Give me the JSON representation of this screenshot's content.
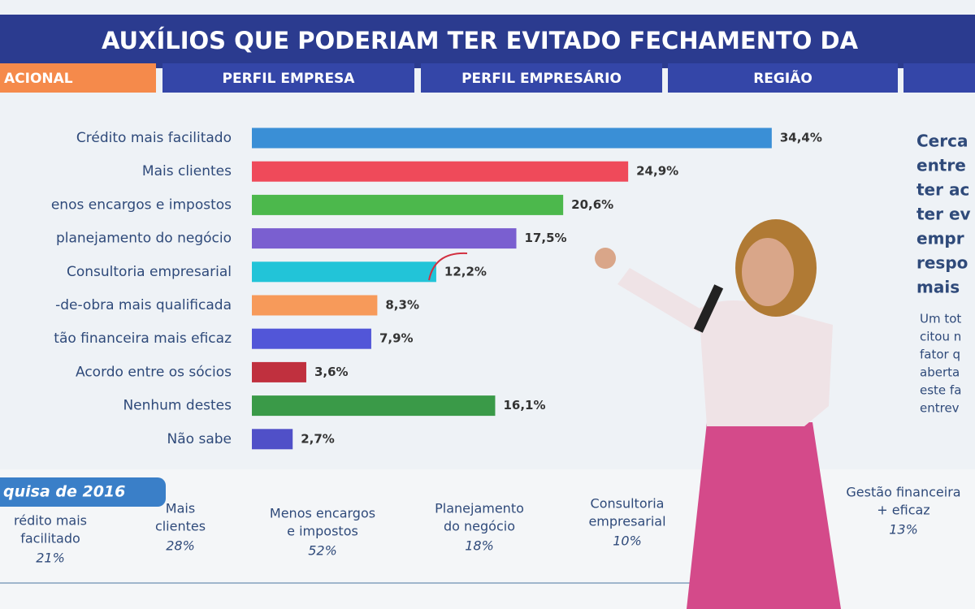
{
  "header": {
    "title": "AUXÍLIOS QUE PODERIAM TER EVITADO FECHAMENTO DA"
  },
  "tabs": [
    "ACIONAL",
    "PERFIL EMPRESA",
    "PERFIL EMPRESÁRIO",
    "REGIÃO"
  ],
  "chart_data": {
    "type": "bar",
    "orientation": "horizontal",
    "categories": [
      "Crédito mais facilitado",
      "Mais clientes",
      "enos encargos e impostos",
      "planejamento do negócio",
      "Consultoria empresarial",
      "-de-obra mais qualificada",
      "tão financeira mais eficaz",
      "Acordo entre os sócios",
      "Nenhum destes",
      "Não sabe"
    ],
    "values": [
      34.4,
      24.9,
      20.6,
      17.5,
      12.2,
      8.3,
      7.9,
      3.6,
      16.1,
      2.7
    ],
    "value_labels": [
      "34,4%",
      "24,9%",
      "20,6%",
      "17,5%",
      "12,2%",
      "8,3%",
      "7,9%",
      "3,6%",
      "16,1%",
      "2,7%"
    ],
    "colors": [
      "#3a8fd6",
      "#ef4a5a",
      "#4cb84c",
      "#7a5fd0",
      "#22c4d8",
      "#f79a5a",
      "#5256d8",
      "#c0303e",
      "#3a9a48",
      "#5050c8"
    ]
  },
  "side_text": {
    "lead": [
      "Cerca",
      "entre",
      "ter ac",
      "ter ev",
      "empr",
      "respo",
      "mais"
    ],
    "note": [
      "Um tot",
      "citou n",
      "fator q",
      "aberta",
      "este fa",
      "entrev"
    ]
  },
  "comparison": {
    "label": "quisa de 2016",
    "items": [
      {
        "lines": [
          "rédito mais",
          "facilitado"
        ],
        "value": "21%"
      },
      {
        "lines": [
          "Mais",
          "clientes"
        ],
        "value": "28%"
      },
      {
        "lines": [
          "Menos encargos",
          "e impostos"
        ],
        "value": "52%"
      },
      {
        "lines": [
          "Planejamento",
          "do negócio"
        ],
        "value": "18%"
      },
      {
        "lines": [
          "Consultoria",
          "empresarial"
        ],
        "value": "10%"
      },
      {
        "lines": [
          "Gestão financeira",
          "+ eficaz"
        ],
        "value": "13%"
      }
    ]
  }
}
